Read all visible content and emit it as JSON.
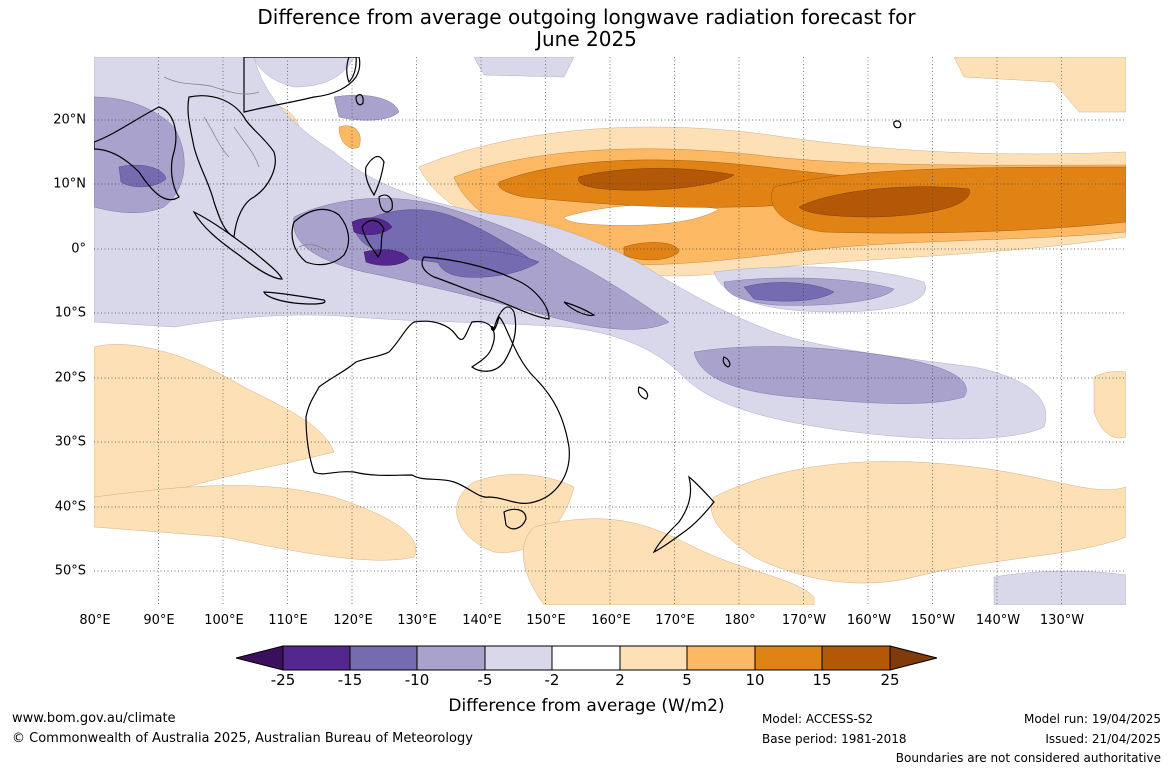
{
  "title_line1": "Difference from average outgoing longwave radiation forecast for",
  "title_line2": "June 2025",
  "lon_labels": [
    "80°E",
    "90°E",
    "100°E",
    "110°E",
    "120°E",
    "130°E",
    "140°E",
    "150°E",
    "160°E",
    "170°E",
    "180°",
    "170°W",
    "160°W",
    "150°W",
    "140°W",
    "130°W"
  ],
  "lat_labels": [
    "20°N",
    "10°N",
    "0°",
    "10°S",
    "20°S",
    "30°S",
    "40°S",
    "50°S"
  ],
  "colorbar": {
    "title": "Difference from average (W/m2)",
    "ticks": [
      "-25",
      "-15",
      "-10",
      "-5",
      "-2",
      "2",
      "5",
      "10",
      "15",
      "25"
    ],
    "colors": [
      "#3b0f5e",
      "#54278f",
      "#756bb1",
      "#a9a2cd",
      "#d8d8ea",
      "#ffffff",
      "#fee0b6",
      "#fdb863",
      "#e08214",
      "#b35806",
      "#7f3b08"
    ]
  },
  "footer": {
    "website": "www.bom.gov.au/climate",
    "copyright": "© Commonwealth of Australia 2025, Australian Bureau of Meteorology",
    "model": "Model: ACCESS-S2",
    "base_period": "Base period: 1981-2018",
    "model_run": "Model run: 19/04/2025",
    "issued": "Issued: 21/04/2025",
    "disclaimer": "Boundaries are not considered authoritative"
  }
}
